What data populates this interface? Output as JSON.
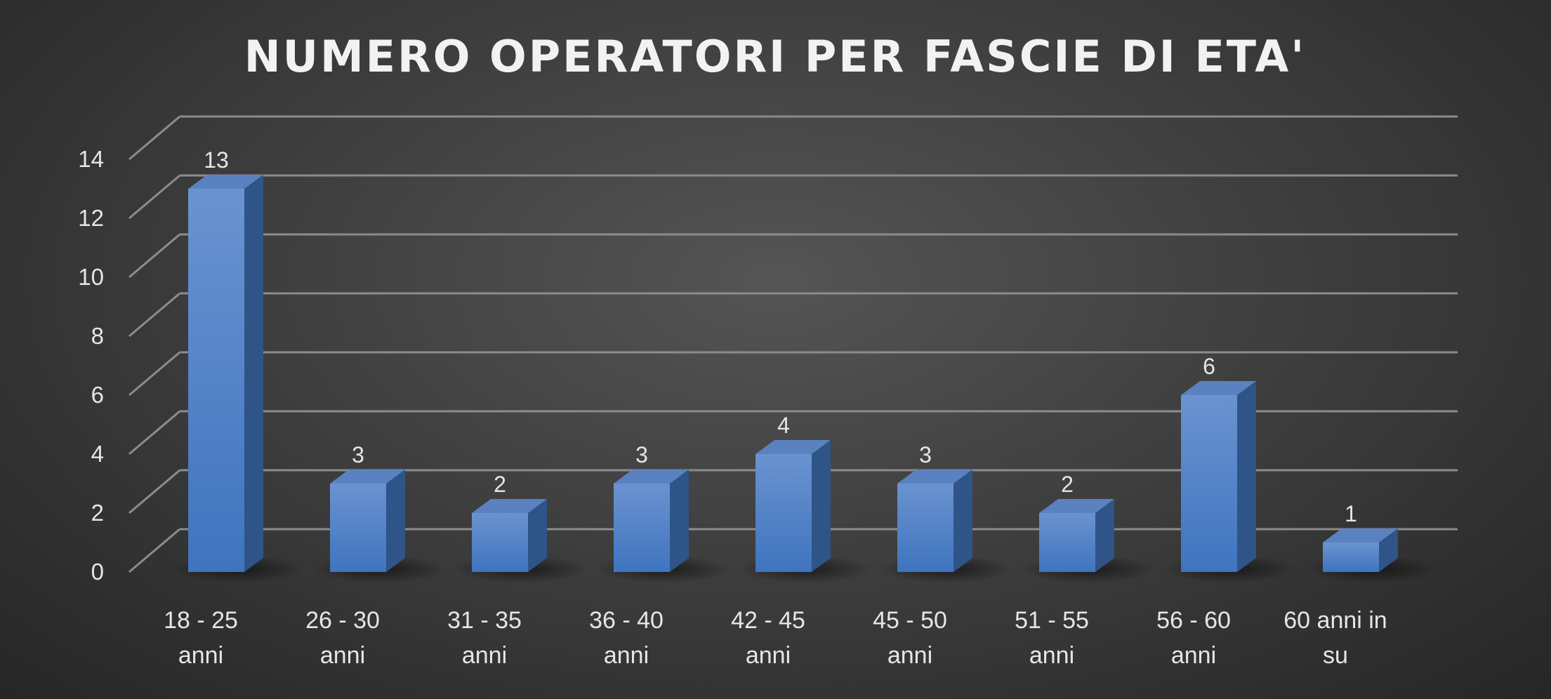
{
  "chart_data": {
    "type": "bar",
    "title": "NUMERO OPERATORI PER FASCIE DI ETA'",
    "categories": [
      "18 - 25 anni",
      "26 - 30 anni",
      "31 - 35 anni",
      "36 - 40 anni",
      "42 - 45 anni",
      "45 - 50 anni",
      "51 - 55 anni",
      "56 - 60 anni",
      "60 anni in su"
    ],
    "category_lines": [
      [
        "18 - 25",
        "anni"
      ],
      [
        "26 - 30",
        "anni"
      ],
      [
        "31 - 35",
        "anni"
      ],
      [
        "36 - 40",
        "anni"
      ],
      [
        "42 - 45",
        "anni"
      ],
      [
        "45 - 50",
        "anni"
      ],
      [
        "51 - 55",
        "anni"
      ],
      [
        "56 - 60",
        "anni"
      ],
      [
        "60 anni in",
        "su"
      ]
    ],
    "values": [
      13,
      3,
      2,
      3,
      4,
      3,
      2,
      6,
      1
    ],
    "y_ticks": [
      0,
      2,
      4,
      6,
      8,
      10,
      12,
      14
    ],
    "ylim": [
      0,
      14
    ],
    "xlabel": "",
    "ylabel": "",
    "grid": true,
    "style": "3d-column",
    "colors": {
      "bar_front_top": "#6a93d0",
      "bar_front_bottom": "#3f74bf",
      "bar_side": "#2f5488",
      "bar_top": "#5a82c0",
      "grid": "#8c8c8c",
      "text": "#e6e6e6",
      "title": "#f2f2f2"
    }
  }
}
